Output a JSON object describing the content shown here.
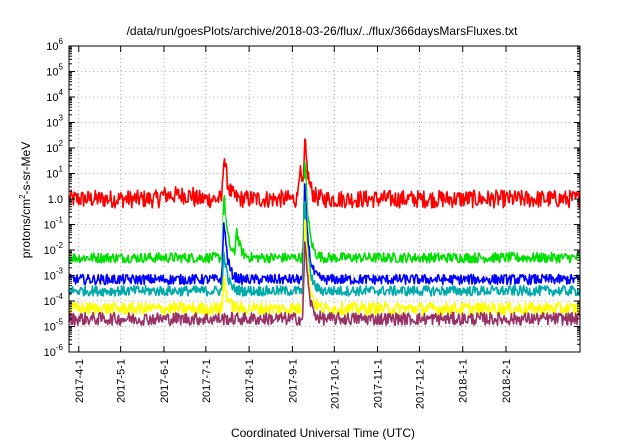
{
  "chart_data": {
    "type": "line",
    "title": "/data/run/goesPlots/archive/2018-03-26/flux/../flux/366daysMarsFluxes.txt",
    "xlabel": "Coordinated Universal Time (UTC)",
    "ylabel": "protons/cm²-s-sr-MeV",
    "ylabel_parts": [
      "protons/cm",
      "2",
      "-s-sr-MeV"
    ],
    "yscale": "log",
    "ylim": [
      "1e-6",
      "1e6"
    ],
    "xlim": [
      "2017-03-25",
      "2018-03-26"
    ],
    "grid": true,
    "y_tick_labels": [
      {
        "exp": "-6",
        "base": "10"
      },
      {
        "exp": "-5",
        "base": "10"
      },
      {
        "exp": "-4",
        "base": "10"
      },
      {
        "exp": "-3",
        "base": "10"
      },
      {
        "exp": "-2",
        "base": "10"
      },
      {
        "exp": "-1",
        "base": "10"
      },
      {
        "exp": "",
        "base": "10",
        "text": "1.0"
      },
      {
        "exp": "1",
        "base": "10"
      },
      {
        "exp": "2",
        "base": "10"
      },
      {
        "exp": "3",
        "base": "10"
      },
      {
        "exp": "4",
        "base": "10"
      },
      {
        "exp": "5",
        "base": "10"
      },
      {
        "exp": "6",
        "base": "10"
      }
    ],
    "x_tick_labels": [
      "2017-4-1",
      "2017-5-1",
      "2017-6-1",
      "2017-7-1",
      "2017-8-1",
      "2017-9-1",
      "2017-10-1",
      "2017-11-1",
      "2017-12-1",
      "2018-1-1",
      "2018-2-1"
    ],
    "x_tick_dates": [
      "2017-04-01",
      "2017-05-01",
      "2017-06-01",
      "2017-07-01",
      "2017-08-01",
      "2017-09-01",
      "2017-10-01",
      "2017-11-01",
      "2017-12-01",
      "2018-01-01",
      "2018-02-01"
    ],
    "series": [
      {
        "color": "#ff0000",
        "base": 1.0,
        "noise": 0.35,
        "events": [
          {
            "date": "2017-07-14",
            "peak": 80
          },
          {
            "date": "2017-09-10",
            "peak": 200
          },
          {
            "date": "2017-09-06",
            "peak": 20
          }
        ],
        "dips": [
          {
            "from": "2017-05-29",
            "to": "2017-06-22",
            "level": 0.1
          }
        ]
      },
      {
        "color": "#00e000",
        "base": 0.005,
        "noise": 0.2,
        "events": [
          {
            "date": "2017-07-14",
            "peak": 2
          },
          {
            "date": "2017-07-23",
            "peak": 0.08
          },
          {
            "date": "2017-09-10",
            "peak": 50
          }
        ]
      },
      {
        "color": "#ffffff",
        "base": 0.0015,
        "noise": 0.2,
        "events": [
          {
            "date": "2017-07-14",
            "peak": 0.3
          },
          {
            "date": "2017-09-10",
            "peak": 8
          }
        ]
      },
      {
        "color": "#0000ff",
        "base": 0.0007,
        "noise": 0.2,
        "events": [
          {
            "date": "2017-07-14",
            "peak": 0.2
          },
          {
            "date": "2017-09-10",
            "peak": 5
          }
        ]
      },
      {
        "color": "#00aaaa",
        "base": 0.00025,
        "noise": 0.2,
        "events": [
          {
            "date": "2017-07-14",
            "peak": 0.01
          },
          {
            "date": "2017-09-10",
            "peak": 1
          }
        ]
      },
      {
        "color": "#ffff00",
        "base": 5e-05,
        "noise": 0.25,
        "events": [
          {
            "date": "2017-07-14",
            "peak": 0.001
          },
          {
            "date": "2017-09-10",
            "peak": 0.5
          }
        ]
      },
      {
        "color": "#993366",
        "base": 2e-05,
        "noise": 0.25,
        "events": [
          {
            "date": "2017-09-10",
            "peak": 0.05
          }
        ]
      }
    ]
  }
}
